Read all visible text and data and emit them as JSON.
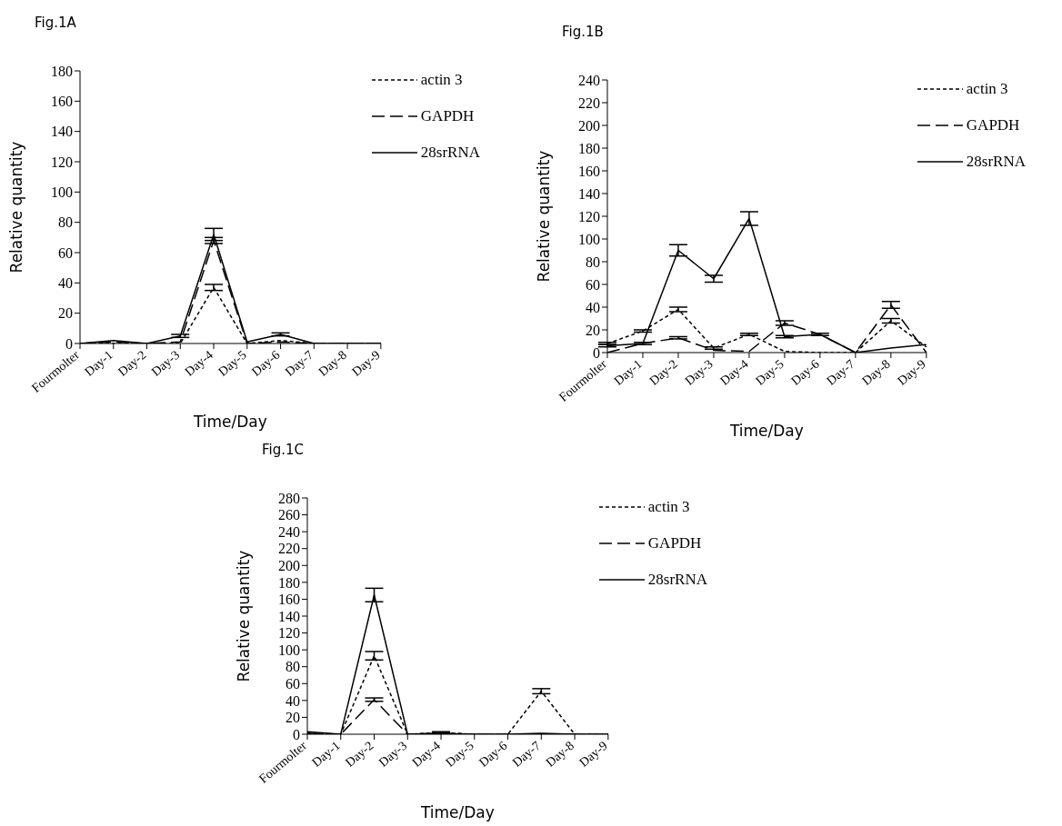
{
  "chart_data": [
    {
      "type": "line",
      "title": "Fig.1A",
      "xlabel": "Time/Day",
      "ylabel": "Relative quantity",
      "categories": [
        "Fourmolter",
        "Day-1",
        "Day-2",
        "Day-3",
        "Day-4",
        "Day-5",
        "Day-6",
        "Day-7",
        "Day-8",
        "Day-9"
      ],
      "ylim": [
        0,
        180
      ],
      "yticks": [
        0,
        20,
        40,
        60,
        80,
        100,
        120,
        140,
        160,
        180
      ],
      "grid": false,
      "legend": "top right",
      "marker": "none",
      "series": [
        {
          "name": "actin 3",
          "color": "#000000",
          "line_style": "dotted",
          "values": [
            0,
            0,
            0,
            0,
            37,
            0,
            2,
            0,
            0,
            0
          ],
          "errors": [
            null,
            null,
            null,
            null,
            2,
            null,
            null,
            null,
            null,
            null
          ]
        },
        {
          "name": "GAPDH",
          "color": "#000000",
          "line_style": "dashed",
          "values": [
            0,
            1,
            0,
            1,
            68,
            0,
            1,
            0,
            0,
            0
          ],
          "errors": [
            null,
            null,
            null,
            null,
            2,
            null,
            null,
            null,
            null,
            null
          ]
        },
        {
          "name": "28srRNA",
          "color": "#000000",
          "line_style": "solid",
          "values": [
            0,
            2,
            0,
            5,
            72,
            1,
            6,
            0,
            0,
            0
          ],
          "errors": [
            null,
            null,
            null,
            1,
            4,
            null,
            1,
            null,
            null,
            null
          ]
        }
      ]
    },
    {
      "type": "line",
      "title": "Fig.1B",
      "xlabel": "Time/Day",
      "ylabel": "Relative quantity",
      "categories": [
        "Fourmolter",
        "Day-1",
        "Day-2",
        "Day-3",
        "Day-4",
        "Day-5",
        "Day-6",
        "Day-7",
        "Day-8",
        "Day-9"
      ],
      "ylim": [
        0,
        240
      ],
      "yticks": [
        0,
        20,
        40,
        60,
        80,
        100,
        120,
        140,
        160,
        180,
        200,
        220,
        240
      ],
      "grid": false,
      "legend": "top right",
      "marker": "none",
      "series": [
        {
          "name": "actin 3",
          "color": "#000000",
          "line_style": "dotted",
          "values": [
            8,
            19,
            38,
            4,
            16,
            1,
            0,
            0,
            28,
            5
          ],
          "errors": [
            1,
            1,
            2,
            1,
            1,
            null,
            null,
            null,
            2,
            null
          ]
        },
        {
          "name": "GAPDH",
          "color": "#000000",
          "line_style": "dashed",
          "values": [
            0,
            8,
            13,
            2,
            1,
            26,
            16,
            0,
            42,
            0
          ],
          "errors": [
            null,
            null,
            1,
            null,
            null,
            2,
            null,
            null,
            3,
            null
          ]
        },
        {
          "name": "28srRNA",
          "color": "#000000",
          "line_style": "solid",
          "values": [
            6,
            8,
            90,
            65,
            118,
            14,
            16,
            0,
            4,
            7
          ],
          "errors": [
            1,
            1,
            5,
            3,
            6,
            1,
            1,
            null,
            null,
            null
          ]
        }
      ]
    },
    {
      "type": "line",
      "title": "Fig.1C",
      "xlabel": "Time/Day",
      "ylabel": "Relative quantity",
      "categories": [
        "Fourmolter",
        "Day-1",
        "Day-2",
        "Day-3",
        "Day-4",
        "Day-5",
        "Day-6",
        "Day-7",
        "Day-8",
        "Day-9"
      ],
      "ylim": [
        0,
        280
      ],
      "yticks": [
        0,
        20,
        40,
        60,
        80,
        100,
        120,
        140,
        160,
        180,
        200,
        220,
        240,
        260,
        280
      ],
      "grid": false,
      "legend": "top right",
      "marker": "none",
      "series": [
        {
          "name": "actin 3",
          "color": "#000000",
          "line_style": "dotted",
          "values": [
            1,
            0,
            93,
            0,
            2,
            0,
            0,
            51,
            0,
            0
          ],
          "errors": [
            null,
            null,
            5,
            null,
            1,
            null,
            null,
            3,
            null,
            null
          ]
        },
        {
          "name": "GAPDH",
          "color": "#000000",
          "line_style": "dashed",
          "values": [
            1,
            0,
            41,
            0,
            1,
            0,
            0,
            0,
            0,
            0
          ],
          "errors": [
            null,
            null,
            2,
            null,
            null,
            null,
            null,
            null,
            null,
            null
          ]
        },
        {
          "name": "28srRNA",
          "color": "#000000",
          "line_style": "solid",
          "values": [
            3,
            0,
            165,
            0,
            1,
            0,
            0,
            1,
            0,
            0
          ],
          "errors": [
            null,
            null,
            8,
            null,
            null,
            null,
            null,
            null,
            null,
            null
          ]
        }
      ]
    }
  ]
}
